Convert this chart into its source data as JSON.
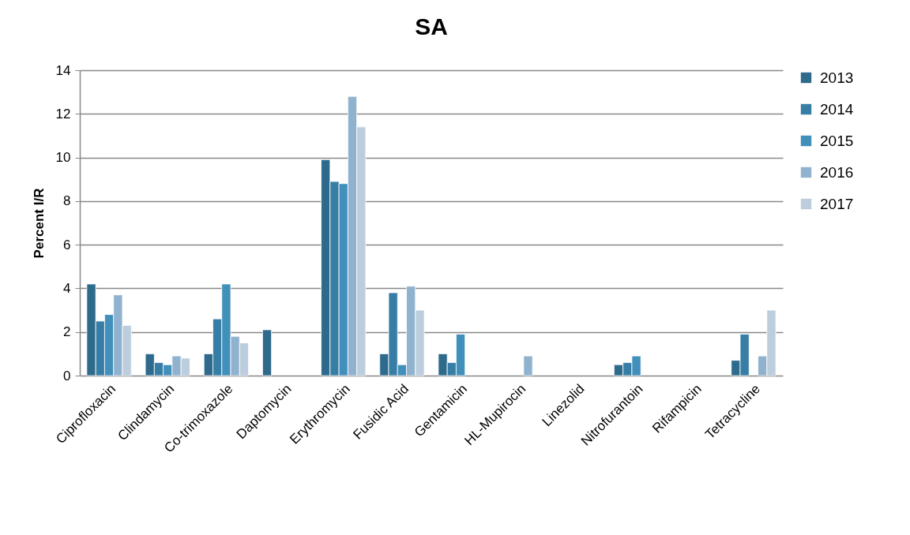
{
  "chart_data": {
    "type": "bar",
    "title": "SA",
    "ylabel": "Percent I/R",
    "categories": [
      "Ciprofloxacin",
      "Clindamycin",
      "Co-trimoxazole",
      "Daptomycin",
      "Erythromycin",
      "Fusidic Acid",
      "Gentamicin",
      "HL-Mupirocin",
      "Linezolid",
      "Nitrofurantoin",
      "Rifampicin",
      "Tetracycline"
    ],
    "series": [
      {
        "name": "2013",
        "color": "#2e6a8c",
        "values": [
          4.2,
          1.0,
          1.0,
          2.1,
          9.9,
          1.0,
          1.0,
          null,
          null,
          0.5,
          null,
          0.7
        ]
      },
      {
        "name": "2014",
        "color": "#377ea6",
        "values": [
          2.5,
          0.6,
          2.6,
          null,
          8.9,
          3.8,
          0.6,
          null,
          null,
          0.6,
          null,
          1.9
        ]
      },
      {
        "name": "2015",
        "color": "#418fbb",
        "values": [
          2.8,
          0.5,
          4.2,
          null,
          8.8,
          0.5,
          1.9,
          null,
          null,
          0.9,
          null,
          null
        ]
      },
      {
        "name": "2016",
        "color": "#90b2cf",
        "values": [
          3.7,
          0.9,
          1.8,
          null,
          12.8,
          4.1,
          null,
          0.9,
          null,
          null,
          null,
          0.9
        ]
      },
      {
        "name": "2017",
        "color": "#bccedd",
        "values": [
          2.3,
          0.8,
          1.5,
          null,
          11.4,
          3.0,
          null,
          null,
          null,
          null,
          null,
          3.0
        ]
      }
    ],
    "ylim": [
      0,
      14
    ],
    "yticks": [
      0,
      2,
      4,
      6,
      8,
      10,
      12,
      14
    ],
    "grid": "y",
    "legend": "right"
  }
}
